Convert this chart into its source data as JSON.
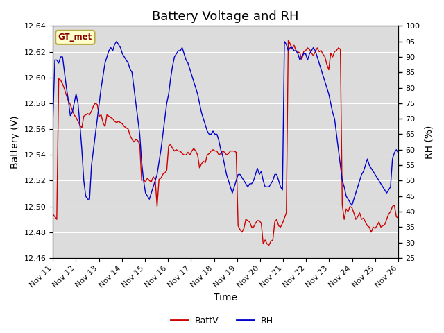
{
  "title": "Battery Voltage and RH",
  "xlabel": "Time",
  "ylabel_left": "Battery (V)",
  "ylabel_right": "RH (%)",
  "ylim_left": [
    12.46,
    12.64
  ],
  "ylim_right": [
    25,
    100
  ],
  "yticks_left": [
    12.46,
    12.48,
    12.5,
    12.52,
    12.54,
    12.56,
    12.58,
    12.6,
    12.62,
    12.64
  ],
  "yticks_right": [
    25,
    30,
    35,
    40,
    45,
    50,
    55,
    60,
    65,
    70,
    75,
    80,
    85,
    90,
    95,
    100
  ],
  "xtick_labels": [
    "Nov 11",
    "Nov 12",
    "Nov 13",
    "Nov 14",
    "Nov 15",
    "Nov 16",
    "Nov 17",
    "Nov 18",
    "Nov 19",
    "Nov 20",
    "Nov 21",
    "Nov 22",
    "Nov 23",
    "Nov 24",
    "Nov 25",
    "Nov 26"
  ],
  "legend_label": "GT_met",
  "legend_box_color": "#ffffcc",
  "legend_border_color": "#bbaa44",
  "legend_text_color": "#880000",
  "line_battv_color": "#cc0000",
  "line_rh_color": "#0000cc",
  "background_color": "#ffffff",
  "plot_bg_color": "#dcdcdc",
  "grid_color": "#ffffff",
  "title_fontsize": 13,
  "label_fontsize": 10,
  "tick_fontsize": 8,
  "battv": [
    12.494,
    12.492,
    12.49,
    12.599,
    12.598,
    12.595,
    12.591,
    12.586,
    12.582,
    12.579,
    12.575,
    12.571,
    12.569,
    12.566,
    12.563,
    12.561,
    12.57,
    12.571,
    12.572,
    12.571,
    12.574,
    12.578,
    12.58,
    12.579,
    12.57,
    12.571,
    12.565,
    12.562,
    12.571,
    12.57,
    12.569,
    12.568,
    12.566,
    12.565,
    12.566,
    12.565,
    12.564,
    12.562,
    12.561,
    12.56,
    12.555,
    12.552,
    12.55,
    12.552,
    12.551,
    12.548,
    12.52,
    12.521,
    12.519,
    12.522,
    12.52,
    12.519,
    12.523,
    12.521,
    12.5,
    12.521,
    12.522,
    12.525,
    12.526,
    12.528,
    12.547,
    12.548,
    12.545,
    12.543,
    12.544,
    12.543,
    12.543,
    12.541,
    12.54,
    12.54,
    12.542,
    12.54,
    12.543,
    12.545,
    12.543,
    12.54,
    12.53,
    12.533,
    12.535,
    12.534,
    12.54,
    12.541,
    12.543,
    12.544,
    12.543,
    12.543,
    12.54,
    12.541,
    12.543,
    12.542,
    12.54,
    12.541,
    12.543,
    12.543,
    12.543,
    12.542,
    12.485,
    12.482,
    12.48,
    12.483,
    12.49,
    12.489,
    12.488,
    12.484,
    12.484,
    12.487,
    12.489,
    12.489,
    12.487,
    12.471,
    12.474,
    12.471,
    12.47,
    12.473,
    12.474,
    12.488,
    12.49,
    12.485,
    12.484,
    12.487,
    12.491,
    12.495,
    12.629,
    12.626,
    12.622,
    12.625,
    12.621,
    12.62,
    12.619,
    12.614,
    12.62,
    12.621,
    12.623,
    12.622,
    12.619,
    12.617,
    12.62,
    12.623,
    12.62,
    12.621,
    12.618,
    12.616,
    12.61,
    12.606,
    12.619,
    12.616,
    12.62,
    12.621,
    12.623,
    12.622,
    12.501,
    12.49,
    12.498,
    12.496,
    12.5,
    12.499,
    12.495,
    12.49,
    12.492,
    12.495,
    12.49,
    12.491,
    12.488,
    12.485,
    12.484,
    12.48,
    12.484,
    12.483,
    12.485,
    12.488,
    12.484,
    12.485,
    12.486,
    12.49,
    12.494,
    12.496,
    12.5,
    12.501,
    12.492,
    12.491
  ],
  "rh": [
    70,
    89,
    89,
    88,
    90,
    90,
    85,
    80,
    76,
    71,
    72,
    75,
    78,
    75,
    68,
    60,
    50,
    45,
    44,
    44,
    55,
    60,
    65,
    70,
    75,
    80,
    84,
    88,
    90,
    92,
    93,
    92,
    94,
    95,
    94,
    93,
    91,
    90,
    89,
    88,
    86,
    85,
    80,
    75,
    70,
    65,
    56,
    50,
    46,
    45,
    44,
    46,
    48,
    50,
    52,
    56,
    60,
    65,
    70,
    75,
    78,
    83,
    87,
    90,
    91,
    92,
    92,
    93,
    91,
    89,
    88,
    86,
    84,
    82,
    80,
    78,
    75,
    72,
    70,
    68,
    66,
    65,
    65,
    66,
    65,
    65,
    63,
    60,
    58,
    55,
    52,
    50,
    48,
    46,
    48,
    50,
    52,
    52,
    51,
    50,
    49,
    48,
    49,
    49,
    50,
    52,
    54,
    52,
    53,
    50,
    48,
    48,
    48,
    49,
    50,
    52,
    52,
    50,
    48,
    47,
    95,
    94,
    92,
    93,
    93,
    92,
    92,
    91,
    89,
    90,
    91,
    91,
    89,
    91,
    92,
    93,
    92,
    90,
    88,
    86,
    84,
    82,
    80,
    78,
    75,
    72,
    70,
    65,
    60,
    55,
    50,
    48,
    45,
    44,
    43,
    42,
    44,
    46,
    48,
    50,
    52,
    53,
    55,
    57,
    55,
    54,
    53,
    52,
    51,
    50,
    49,
    48,
    47,
    46,
    47,
    48,
    57,
    59,
    60,
    59
  ]
}
